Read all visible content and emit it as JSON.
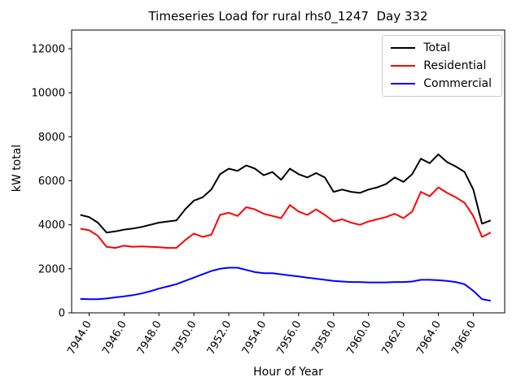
{
  "chart_data": {
    "type": "line",
    "title": "Timeseries Load for rural rhs0_1247  Day 332",
    "xlabel": "Hour of Year",
    "ylabel": "kW total",
    "grid": false,
    "legend_position": "upper right",
    "background_color": "#ffffff",
    "axis_color": "#000000",
    "legend_border_color": "#cccccc",
    "xlim": [
      7943.0,
      7967.8
    ],
    "ylim": [
      0,
      12850
    ],
    "x_tick_rotation": 60,
    "x_tick_values": [
      7944,
      7946,
      7948,
      7950,
      7952,
      7954,
      7956,
      7958,
      7960,
      7962,
      7964,
      7966
    ],
    "x_tick_labels": [
      "7944.0",
      "7946.0",
      "7948.0",
      "7950.0",
      "7952.0",
      "7954.0",
      "7956.0",
      "7958.0",
      "7960.0",
      "7962.0",
      "7964.0",
      "7966.0"
    ],
    "y_tick_values": [
      0,
      2000,
      4000,
      6000,
      8000,
      10000,
      12000
    ],
    "y_tick_labels": [
      "0",
      "2000",
      "4000",
      "6000",
      "8000",
      "10000",
      "12000"
    ],
    "x": [
      7943.5,
      7944.0,
      7944.5,
      7945.0,
      7945.5,
      7946.0,
      7946.5,
      7947.0,
      7947.5,
      7948.0,
      7948.5,
      7949.0,
      7949.5,
      7950.0,
      7950.5,
      7951.0,
      7951.5,
      7952.0,
      7952.5,
      7953.0,
      7953.5,
      7954.0,
      7954.5,
      7955.0,
      7955.5,
      7956.0,
      7956.5,
      7957.0,
      7957.5,
      7958.0,
      7958.5,
      7959.0,
      7959.5,
      7960.0,
      7960.5,
      7961.0,
      7961.5,
      7962.0,
      7962.5,
      7963.0,
      7963.5,
      7964.0,
      7964.5,
      7965.0,
      7965.5,
      7966.0,
      7966.5,
      7967.0
    ],
    "series": [
      {
        "name": "Total",
        "color": "#000000",
        "values": [
          4450,
          4350,
          4100,
          3650,
          3700,
          3780,
          3830,
          3900,
          4000,
          4100,
          4150,
          4200,
          4700,
          5100,
          5250,
          5600,
          6300,
          6550,
          6450,
          6700,
          6550,
          6250,
          6400,
          6050,
          6550,
          6300,
          6150,
          6350,
          6150,
          5500,
          5600,
          5500,
          5450,
          5600,
          5700,
          5850,
          6150,
          5950,
          6300,
          7000,
          6800,
          7200,
          6850,
          6650,
          6400,
          5600,
          4050,
          4200
        ]
      },
      {
        "name": "Residential",
        "color": "#ff0000",
        "values": [
          3820,
          3750,
          3500,
          3000,
          2950,
          3050,
          3000,
          3020,
          3000,
          2980,
          2950,
          2950,
          3300,
          3600,
          3450,
          3550,
          4450,
          4550,
          4400,
          4800,
          4700,
          4500,
          4400,
          4300,
          4900,
          4600,
          4450,
          4700,
          4450,
          4150,
          4250,
          4100,
          4000,
          4150,
          4250,
          4350,
          4500,
          4300,
          4600,
          5500,
          5300,
          5700,
          5450,
          5250,
          5000,
          4400,
          3450,
          3650
        ]
      },
      {
        "name": "Commercial",
        "color": "#0000ff",
        "values": [
          630,
          620,
          620,
          650,
          700,
          750,
          800,
          880,
          980,
          1100,
          1200,
          1300,
          1450,
          1600,
          1750,
          1900,
          2000,
          2050,
          2050,
          1950,
          1850,
          1800,
          1800,
          1750,
          1700,
          1650,
          1600,
          1550,
          1500,
          1450,
          1420,
          1400,
          1400,
          1380,
          1380,
          1380,
          1400,
          1400,
          1420,
          1500,
          1500,
          1480,
          1450,
          1400,
          1300,
          1000,
          620,
          550
        ]
      }
    ]
  }
}
